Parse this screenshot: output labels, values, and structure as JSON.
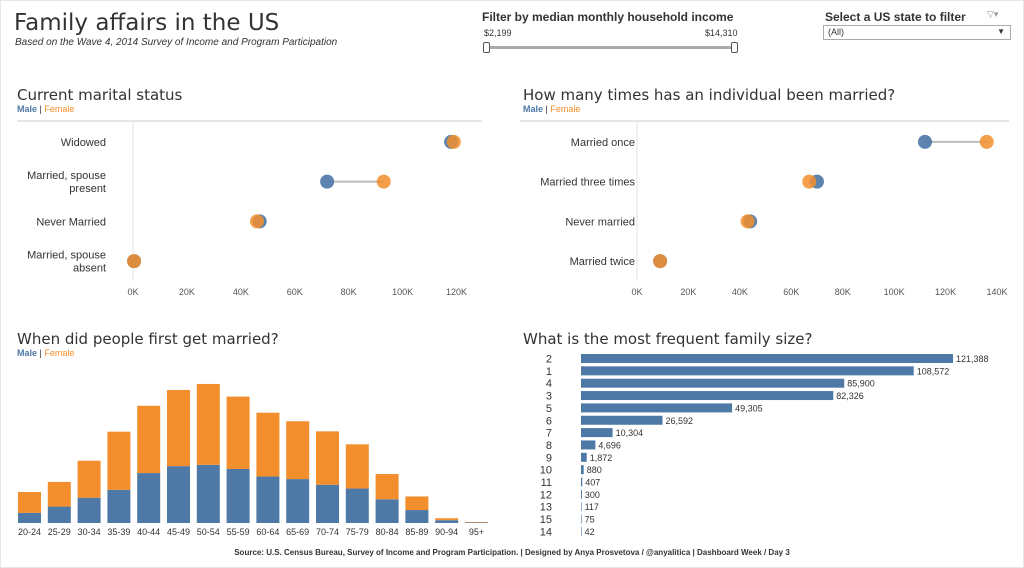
{
  "header": {
    "title": "Family affairs in the US",
    "subtitle": "Based on the Wave 4, 2014 Survey of Income and Program Participation"
  },
  "income_filter": {
    "label": "Filter by median monthly household income",
    "min": "$2,199",
    "max": "$14,310"
  },
  "state_filter": {
    "label": "Select a US state to filter",
    "value": "(All)"
  },
  "legend": {
    "male": "Male",
    "sep": "|",
    "female": "Female"
  },
  "colors": {
    "male": "#4e79a7",
    "female": "#f28e2b",
    "bar": "#4e79a7"
  },
  "footer": "Source: U.S. Census Bureau, Survey of Income and Program Participation. | Designed by Anya Prosvetova / @anyalitica  | Dashboard Week / Day 3",
  "chart_data": [
    {
      "id": "marital",
      "type": "scatter",
      "title": "Current marital status",
      "categories": [
        "Widowed",
        "Married, spouse present",
        "Never Married",
        "Married, spouse absent"
      ],
      "series": [
        {
          "name": "Male",
          "values": [
            118000,
            72000,
            47000,
            400
          ]
        },
        {
          "name": "Female",
          "values": [
            119000,
            93000,
            46000,
            400
          ]
        }
      ],
      "xlim": [
        0,
        125000
      ],
      "xticks": [
        0,
        20000,
        40000,
        60000,
        80000,
        100000,
        120000
      ],
      "xtick_labels": [
        "0K",
        "20K",
        "40K",
        "60K",
        "80K",
        "100K",
        "120K"
      ]
    },
    {
      "id": "married_times",
      "type": "scatter",
      "title": "How many times has an individual been married?",
      "categories": [
        "Married once",
        "Married three times",
        "Never married",
        "Married twice"
      ],
      "series": [
        {
          "name": "Male",
          "values": [
            112000,
            70000,
            44000,
            9000
          ]
        },
        {
          "name": "Female",
          "values": [
            136000,
            67000,
            43000,
            9000
          ]
        }
      ],
      "xlim": [
        0,
        140000
      ],
      "xticks": [
        0,
        20000,
        40000,
        60000,
        80000,
        100000,
        120000,
        140000
      ],
      "xtick_labels": [
        "0K",
        "20K",
        "40K",
        "60K",
        "80K",
        "100K",
        "120K",
        "140K"
      ]
    },
    {
      "id": "first_married",
      "type": "bar",
      "stacked": true,
      "title": "When did people first get married?",
      "categories": [
        "20-24",
        "25-29",
        "30-34",
        "35-39",
        "40-44",
        "45-49",
        "50-54",
        "55-59",
        "60-64",
        "65-69",
        "70-74",
        "75-79",
        "80-84",
        "85-89",
        "90-94",
        "95+"
      ],
      "series": [
        {
          "name": "Male",
          "values": [
            3200,
            5200,
            8000,
            10500,
            15800,
            18000,
            18400,
            17100,
            14700,
            13900,
            12100,
            10900,
            7500,
            4100,
            900,
            150
          ]
        },
        {
          "name": "Female",
          "values": [
            6600,
            7800,
            11700,
            18400,
            21300,
            24100,
            25600,
            22900,
            20200,
            18300,
            16900,
            14000,
            8000,
            4300,
            600,
            150
          ]
        }
      ],
      "ylim": [
        0,
        50000
      ]
    },
    {
      "id": "family_size",
      "type": "bar",
      "orientation": "horizontal",
      "title": "What is the most frequent family size?",
      "categories": [
        "2",
        "1",
        "4",
        "3",
        "5",
        "6",
        "7",
        "8",
        "9",
        "10",
        "11",
        "12",
        "13",
        "15",
        "14"
      ],
      "values": [
        121388,
        108572,
        85900,
        82326,
        49305,
        26592,
        10304,
        4696,
        1872,
        880,
        407,
        300,
        117,
        75,
        42
      ],
      "value_labels": [
        "121,388",
        "108,572",
        "85,900",
        "82,326",
        "49,305",
        "26,592",
        "10,304",
        "4,696",
        "1,872",
        "880",
        "407",
        "300",
        "117",
        "75",
        "42"
      ]
    }
  ]
}
